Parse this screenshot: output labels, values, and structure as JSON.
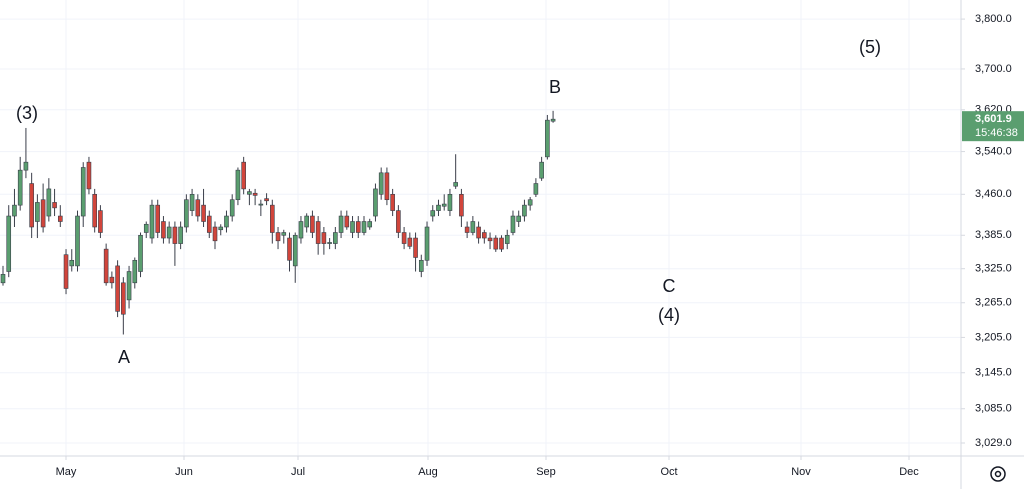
{
  "chart_data": {
    "type": "candlestick",
    "log_scale": true,
    "grid": true,
    "up_color": "#5a9e6f",
    "down_color": "#d1453b",
    "ylim": [
      3008,
      3839
    ],
    "yticks": [
      {
        "value": 3800,
        "label": "3,800.0"
      },
      {
        "value": 3700,
        "label": "3,700.0"
      },
      {
        "value": 3620,
        "label": "3,620.0"
      },
      {
        "value": 3540,
        "label": "3,540.0"
      },
      {
        "value": 3460,
        "label": "3,460.0"
      },
      {
        "value": 3385,
        "label": "3,385.0"
      },
      {
        "value": 3325,
        "label": "3,325.0"
      },
      {
        "value": 3265,
        "label": "3,265.0"
      },
      {
        "value": 3205,
        "label": "3,205.0"
      },
      {
        "value": 3145,
        "label": "3,145.0"
      },
      {
        "value": 3085,
        "label": "3,085.0"
      },
      {
        "value": 3029,
        "label": "3,029.0"
      }
    ],
    "x_labels": [
      "May",
      "Jun",
      "Jul",
      "Aug",
      "Sep",
      "Oct",
      "Nov",
      "Dec"
    ],
    "last_price": {
      "value": 3601.9,
      "label": "3,601.9"
    },
    "countdown": "15:46:38",
    "annotations": [
      "(3)",
      "A",
      "B",
      "C",
      "(4)",
      "(5)"
    ],
    "ohlc": [
      [
        3300,
        3330,
        3295,
        3315
      ],
      [
        3320,
        3440,
        3310,
        3420
      ],
      [
        3420,
        3470,
        3400,
        3440
      ],
      [
        3440,
        3530,
        3430,
        3505
      ],
      [
        3505,
        3585,
        3490,
        3520
      ],
      [
        3480,
        3500,
        3380,
        3400
      ],
      [
        3410,
        3460,
        3380,
        3445
      ],
      [
        3450,
        3480,
        3390,
        3400
      ],
      [
        3420,
        3490,
        3410,
        3470
      ],
      [
        3445,
        3470,
        3420,
        3435
      ],
      [
        3420,
        3440,
        3400,
        3410
      ],
      [
        3350,
        3360,
        3280,
        3290
      ],
      [
        3330,
        3360,
        3320,
        3340
      ],
      [
        3330,
        3430,
        3320,
        3420
      ],
      [
        3420,
        3520,
        3400,
        3510
      ],
      [
        3520,
        3530,
        3460,
        3470
      ],
      [
        3460,
        3470,
        3390,
        3400
      ],
      [
        3430,
        3440,
        3380,
        3390
      ],
      [
        3360,
        3370,
        3295,
        3300
      ],
      [
        3310,
        3320,
        3290,
        3300
      ],
      [
        3330,
        3340,
        3240,
        3250
      ],
      [
        3300,
        3310,
        3210,
        3245
      ],
      [
        3270,
        3330,
        3255,
        3320
      ],
      [
        3300,
        3345,
        3290,
        3340
      ],
      [
        3320,
        3390,
        3310,
        3385
      ],
      [
        3390,
        3410,
        3380,
        3405
      ],
      [
        3380,
        3450,
        3370,
        3440
      ],
      [
        3440,
        3450,
        3380,
        3390
      ],
      [
        3410,
        3420,
        3370,
        3380
      ],
      [
        3380,
        3410,
        3370,
        3400
      ],
      [
        3400,
        3410,
        3330,
        3370
      ],
      [
        3370,
        3410,
        3360,
        3400
      ],
      [
        3400,
        3460,
        3390,
        3450
      ],
      [
        3430,
        3470,
        3420,
        3460
      ],
      [
        3450,
        3460,
        3410,
        3420
      ],
      [
        3440,
        3470,
        3400,
        3410
      ],
      [
        3420,
        3430,
        3380,
        3390
      ],
      [
        3400,
        3410,
        3360,
        3375
      ],
      [
        3395,
        3405,
        3385,
        3400
      ],
      [
        3400,
        3430,
        3390,
        3420
      ],
      [
        3420,
        3460,
        3410,
        3450
      ],
      [
        3450,
        3510,
        3440,
        3505
      ],
      [
        3520,
        3530,
        3460,
        3470
      ],
      [
        3460,
        3470,
        3440,
        3465
      ],
      [
        3462,
        3470,
        3440,
        3458
      ],
      [
        3440,
        3450,
        3420,
        3442
      ],
      [
        3452,
        3462,
        3440,
        3448
      ],
      [
        3440,
        3450,
        3370,
        3390
      ],
      [
        3390,
        3400,
        3360,
        3375
      ],
      [
        3385,
        3395,
        3370,
        3390
      ],
      [
        3380,
        3390,
        3320,
        3340
      ],
      [
        3330,
        3390,
        3300,
        3385
      ],
      [
        3380,
        3420,
        3370,
        3410
      ],
      [
        3400,
        3425,
        3390,
        3420
      ],
      [
        3420,
        3430,
        3380,
        3390
      ],
      [
        3410,
        3420,
        3350,
        3370
      ],
      [
        3390,
        3400,
        3350,
        3370
      ],
      [
        3370,
        3380,
        3360,
        3372
      ],
      [
        3370,
        3400,
        3360,
        3390
      ],
      [
        3390,
        3430,
        3380,
        3420
      ],
      [
        3420,
        3430,
        3395,
        3400
      ],
      [
        3390,
        3420,
        3380,
        3410
      ],
      [
        3410,
        3420,
        3380,
        3390
      ],
      [
        3390,
        3420,
        3385,
        3410
      ],
      [
        3400,
        3415,
        3395,
        3410
      ],
      [
        3420,
        3480,
        3410,
        3470
      ],
      [
        3460,
        3510,
        3450,
        3500
      ],
      [
        3500,
        3510,
        3440,
        3450
      ],
      [
        3460,
        3470,
        3420,
        3430
      ],
      [
        3430,
        3440,
        3380,
        3390
      ],
      [
        3390,
        3400,
        3360,
        3370
      ],
      [
        3380,
        3390,
        3360,
        3365
      ],
      [
        3380,
        3390,
        3320,
        3345
      ],
      [
        3320,
        3350,
        3310,
        3340
      ],
      [
        3340,
        3410,
        3330,
        3400
      ],
      [
        3420,
        3440,
        3410,
        3430
      ],
      [
        3430,
        3450,
        3420,
        3440
      ],
      [
        3438,
        3460,
        3430,
        3442
      ],
      [
        3430,
        3470,
        3420,
        3460
      ],
      [
        3475,
        3535,
        3470,
        3482
      ],
      [
        3460,
        3470,
        3400,
        3420
      ],
      [
        3400,
        3410,
        3380,
        3390
      ],
      [
        3390,
        3420,
        3385,
        3410
      ],
      [
        3400,
        3410,
        3370,
        3380
      ],
      [
        3390,
        3395,
        3370,
        3380
      ],
      [
        3380,
        3390,
        3360,
        3375
      ],
      [
        3380,
        3385,
        3355,
        3360
      ],
      [
        3380,
        3385,
        3355,
        3360
      ],
      [
        3370,
        3395,
        3360,
        3385
      ],
      [
        3390,
        3430,
        3385,
        3420
      ],
      [
        3410,
        3430,
        3400,
        3420
      ],
      [
        3420,
        3450,
        3410,
        3440
      ],
      [
        3440,
        3455,
        3430,
        3450
      ],
      [
        3460,
        3490,
        3455,
        3480
      ],
      [
        3490,
        3530,
        3485,
        3520
      ],
      [
        3530,
        3610,
        3525,
        3600
      ],
      [
        3598,
        3618,
        3595,
        3601.9
      ]
    ]
  }
}
